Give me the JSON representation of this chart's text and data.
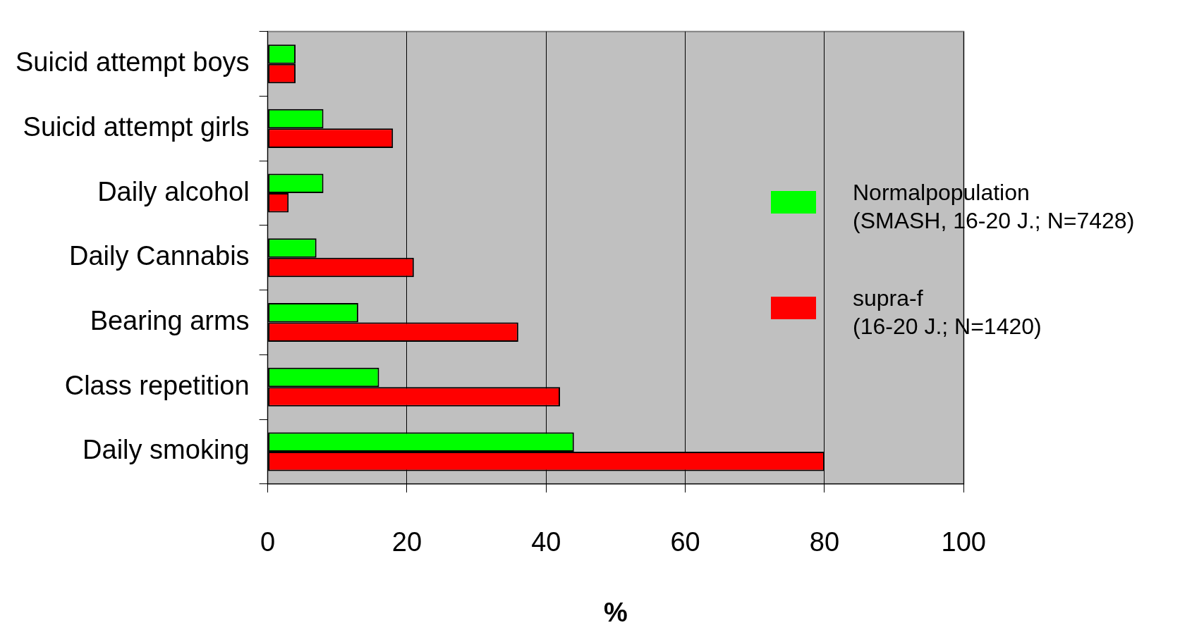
{
  "chart_data": {
    "type": "bar",
    "orientation": "horizontal",
    "xlabel": "%",
    "categories": [
      "Suicid attempt boys",
      "Suicid attempt girls",
      "Daily alcohol",
      "Daily Cannabis",
      "Bearing arms",
      "Class repetition",
      "Daily smoking"
    ],
    "series": [
      {
        "name": "Normalpopulation\n(SMASH, 16-20 J.; N=7428)",
        "color": "#00ff00",
        "values": [
          4,
          8,
          8,
          7,
          13,
          16,
          44
        ]
      },
      {
        "name": "supra-f\n(16-20 J.; N=1420)",
        "color": "#ff0000",
        "values": [
          4,
          18,
          3,
          21,
          36,
          42,
          80
        ]
      }
    ],
    "xlim": [
      0,
      100
    ],
    "xticks": [
      0,
      20,
      40,
      60,
      80,
      100
    ],
    "grid": "x",
    "legend": "right"
  }
}
